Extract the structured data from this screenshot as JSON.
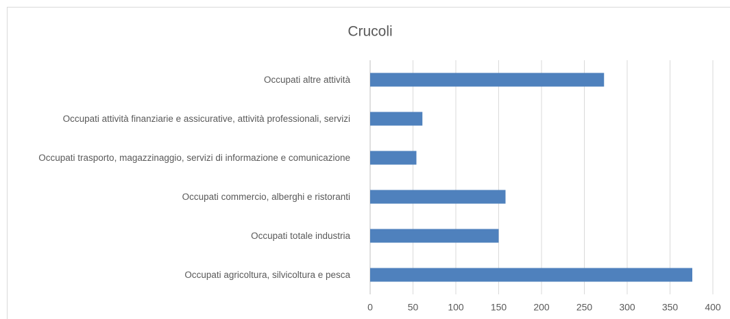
{
  "chart_data": {
    "type": "bar",
    "orientation": "horizontal",
    "title": "Crucoli",
    "categories": [
      "Occupati altre attività",
      "Occupati attività finanziarie e assicurative, attività professionali, servizi",
      "Occupati trasporto, magazzinaggio, servizi di informazione e comunicazione",
      "Occupati commercio, alberghi e ristoranti",
      "Occupati totale industria",
      "Occupati agricoltura, silvicoltura e pesca"
    ],
    "values": [
      273,
      61,
      54,
      158,
      150,
      376
    ],
    "color": "#4f81bd",
    "xlim": [
      0,
      400
    ],
    "xticks": [
      0,
      50,
      100,
      150,
      200,
      250,
      300,
      350,
      400
    ],
    "grid": true
  }
}
